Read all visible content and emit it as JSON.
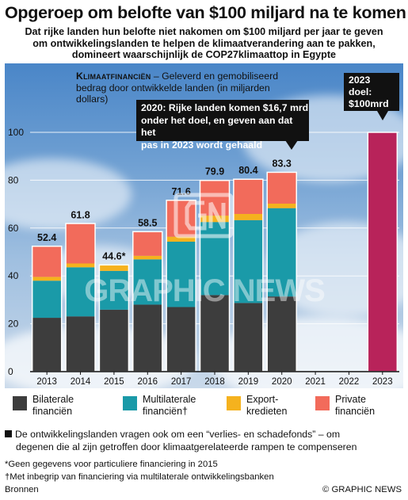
{
  "header": {
    "title": "Opgeroep om belofte van $100 miljard na te komen",
    "subtitle_lines": [
      "Dat rijke landen hun belofte  niet nakomen om $100 miljard per jaar te geven",
      "om  ontwikkelingslanden te helpen de klimaatverandering aan te pakken,",
      "domineert waarschijnlijk de COP27klimaattop in Egypte"
    ]
  },
  "chart_caption": {
    "bold": "Klimaatfinanciën",
    "rest": " – Geleverd en gemobiliseerd",
    "line2": "bedrag door ontwikkelde landen (in miljarden dollars)"
  },
  "callouts": {
    "c2020": [
      "2020: Rijke landen komen $16,7 mrd",
      "onder het doel, en geven aan dat het",
      "pas in 2023 wordt gehaald"
    ],
    "c2023": [
      "2023",
      "doel:",
      "$100mrd"
    ]
  },
  "watermark": {
    "logo": "GN",
    "text": "GRAPHIC NEWS"
  },
  "colors": {
    "bilateral": "#3d3d3d",
    "multilateral": "#1a9aa8",
    "export": "#f5b21e",
    "private": "#f26b5b",
    "goal": "#b8235a",
    "callout_bg": "#111111"
  },
  "chart_data": {
    "type": "bar",
    "stacked": true,
    "categories": [
      "2013",
      "2014",
      "2015",
      "2016",
      "2017",
      "2018",
      "2019",
      "2020",
      "2021",
      "2022",
      "2023"
    ],
    "series": [
      {
        "name": "Bilaterale financiën",
        "key": "bilateral",
        "values": [
          22.5,
          23.1,
          25.9,
          28.0,
          27.0,
          32.0,
          28.7,
          31.4,
          null,
          null,
          null
        ]
      },
      {
        "name": "Multilaterale financiën†",
        "key": "multilateral",
        "values": [
          15.5,
          20.5,
          16.2,
          18.9,
          27.3,
          30.5,
          34.6,
          36.9,
          null,
          null,
          null
        ]
      },
      {
        "name": "Export-kredieten",
        "key": "export",
        "values": [
          1.6,
          1.6,
          2.5,
          1.5,
          2.1,
          2.7,
          2.6,
          1.9,
          null,
          null,
          null
        ]
      },
      {
        "name": "Private financiën",
        "key": "private",
        "values": [
          12.8,
          16.7,
          null,
          10.1,
          15.2,
          14.7,
          14.5,
          13.1,
          null,
          null,
          null
        ]
      }
    ],
    "totals": [
      52.4,
      61.8,
      44.6,
      58.5,
      71.6,
      79.9,
      80.4,
      83.3,
      null,
      null,
      null
    ],
    "total_labels": [
      "52.4",
      "61.8",
      "44.6*",
      "58.5",
      "71.6",
      "79.9",
      "80.4",
      "83.3",
      "",
      "",
      ""
    ],
    "goal": {
      "year": "2023",
      "value": 100
    },
    "ylim": [
      0,
      100
    ],
    "yticks": [
      0,
      20,
      40,
      60,
      80,
      100
    ],
    "grid": true
  },
  "legend": [
    {
      "key": "bilateral",
      "lines": [
        "Bilaterale",
        "financiën"
      ]
    },
    {
      "key": "multilateral",
      "lines": [
        "Multilaterale",
        "financiën†"
      ]
    },
    {
      "key": "export",
      "lines": [
        "Export-",
        "kredieten"
      ]
    },
    {
      "key": "private",
      "lines": [
        "Private",
        "financiën"
      ]
    }
  ],
  "note": {
    "lines": [
      "De ontwikkelingslanden vragen ook om een “verlies- en schadefonds” – om",
      "degenen die al zijn getroffen door klimaatgerelateerde rampen te compenseren"
    ]
  },
  "footnotes": {
    "asterisk": "*Geen gegevens voor particuliere financiering in 2015",
    "dagger": "†Met inbegrip van financiering via multilaterale ontwikkelingsbanken",
    "sources": "Bronnen",
    "brand": "© GRAPHIC NEWS"
  }
}
